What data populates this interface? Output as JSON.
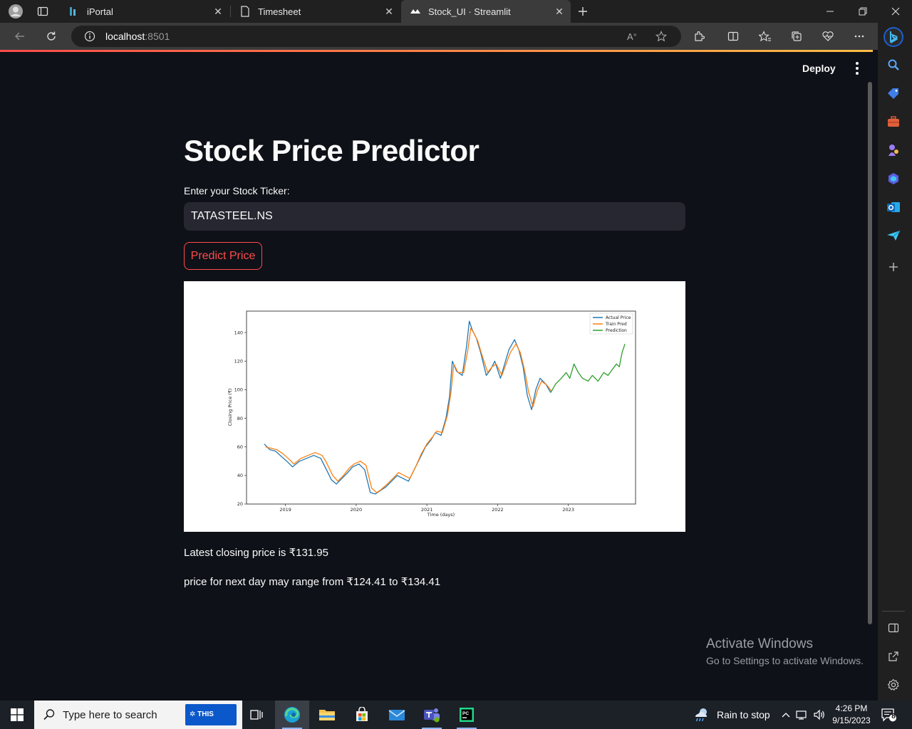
{
  "browser": {
    "tabs": [
      {
        "label": "iPortal"
      },
      {
        "label": "Timesheet"
      },
      {
        "label": "Stock_UI · Streamlit"
      }
    ],
    "url_host": "localhost",
    "url_port": ":8501"
  },
  "app": {
    "deploy_label": "Deploy",
    "title": "Stock Price Predictor",
    "ticker_label": "Enter your Stock Ticker:",
    "ticker_value": "TATASTEEL.NS",
    "predict_label": "Predict Price",
    "latest_close": "Latest closing price is ₹131.95",
    "next_range": "price for next day may range from ₹124.41 to ₹134.41"
  },
  "chart_data": {
    "type": "line",
    "title": "",
    "xlabel": "Time (days)",
    "ylabel": "Closing Price (₹)",
    "xlim": [
      2018.45,
      2023.95
    ],
    "ylim": [
      20,
      155
    ],
    "x_ticks": [
      "2019",
      "2020",
      "2021",
      "2022",
      "2023"
    ],
    "y_ticks": [
      20,
      40,
      60,
      80,
      100,
      120,
      140
    ],
    "legend_position": "top-right",
    "series": [
      {
        "name": "Actual Price",
        "color": "#1f77b4",
        "points": [
          [
            2018.7,
            62
          ],
          [
            2018.78,
            58
          ],
          [
            2018.86,
            57
          ],
          [
            2018.95,
            53
          ],
          [
            2019.04,
            49
          ],
          [
            2019.1,
            46
          ],
          [
            2019.2,
            50
          ],
          [
            2019.3,
            52
          ],
          [
            2019.4,
            54
          ],
          [
            2019.5,
            52
          ],
          [
            2019.55,
            47
          ],
          [
            2019.6,
            42
          ],
          [
            2019.65,
            37
          ],
          [
            2019.72,
            34
          ],
          [
            2019.8,
            38
          ],
          [
            2019.88,
            42
          ],
          [
            2019.95,
            46
          ],
          [
            2020.04,
            48
          ],
          [
            2020.12,
            44
          ],
          [
            2020.2,
            28
          ],
          [
            2020.27,
            27
          ],
          [
            2020.33,
            29
          ],
          [
            2020.42,
            32
          ],
          [
            2020.5,
            36
          ],
          [
            2020.58,
            40
          ],
          [
            2020.66,
            38
          ],
          [
            2020.74,
            36
          ],
          [
            2020.82,
            44
          ],
          [
            2020.9,
            52
          ],
          [
            2020.98,
            60
          ],
          [
            2021.06,
            65
          ],
          [
            2021.12,
            70
          ],
          [
            2021.2,
            68
          ],
          [
            2021.27,
            80
          ],
          [
            2021.32,
            95
          ],
          [
            2021.36,
            120
          ],
          [
            2021.42,
            113
          ],
          [
            2021.5,
            110
          ],
          [
            2021.56,
            130
          ],
          [
            2021.6,
            148
          ],
          [
            2021.64,
            142
          ],
          [
            2021.7,
            136
          ],
          [
            2021.76,
            126
          ],
          [
            2021.84,
            110
          ],
          [
            2021.9,
            114
          ],
          [
            2021.96,
            120
          ],
          [
            2022.04,
            108
          ],
          [
            2022.1,
            118
          ],
          [
            2022.16,
            128
          ],
          [
            2022.24,
            135
          ],
          [
            2022.3,
            128
          ],
          [
            2022.36,
            116
          ],
          [
            2022.42,
            96
          ],
          [
            2022.48,
            86
          ],
          [
            2022.54,
            100
          ],
          [
            2022.6,
            108
          ],
          [
            2022.68,
            104
          ],
          [
            2022.75,
            98
          ]
        ]
      },
      {
        "name": "Train Pred",
        "color": "#ff7f0e",
        "points": [
          [
            2018.72,
            60
          ],
          [
            2018.8,
            59
          ],
          [
            2018.88,
            58
          ],
          [
            2018.97,
            55
          ],
          [
            2019.06,
            51
          ],
          [
            2019.12,
            48
          ],
          [
            2019.22,
            52
          ],
          [
            2019.32,
            54
          ],
          [
            2019.42,
            56
          ],
          [
            2019.52,
            54
          ],
          [
            2019.57,
            50
          ],
          [
            2019.62,
            45
          ],
          [
            2019.67,
            40
          ],
          [
            2019.74,
            36
          ],
          [
            2019.82,
            40
          ],
          [
            2019.9,
            45
          ],
          [
            2019.97,
            48
          ],
          [
            2020.06,
            50
          ],
          [
            2020.14,
            47
          ],
          [
            2020.22,
            31
          ],
          [
            2020.29,
            28
          ],
          [
            2020.35,
            30
          ],
          [
            2020.44,
            34
          ],
          [
            2020.52,
            38
          ],
          [
            2020.6,
            42
          ],
          [
            2020.68,
            40
          ],
          [
            2020.76,
            38
          ],
          [
            2020.84,
            46
          ],
          [
            2020.92,
            55
          ],
          [
            2021.0,
            62
          ],
          [
            2021.08,
            67
          ],
          [
            2021.14,
            71
          ],
          [
            2021.22,
            70
          ],
          [
            2021.29,
            82
          ],
          [
            2021.34,
            98
          ],
          [
            2021.38,
            118
          ],
          [
            2021.44,
            112
          ],
          [
            2021.52,
            112
          ],
          [
            2021.58,
            128
          ],
          [
            2021.62,
            143
          ],
          [
            2021.66,
            140
          ],
          [
            2021.72,
            134
          ],
          [
            2021.78,
            124
          ],
          [
            2021.86,
            112
          ],
          [
            2021.92,
            116
          ],
          [
            2021.98,
            118
          ],
          [
            2022.06,
            110
          ],
          [
            2022.12,
            118
          ],
          [
            2022.18,
            126
          ],
          [
            2022.26,
            132
          ],
          [
            2022.32,
            126
          ],
          [
            2022.38,
            114
          ],
          [
            2022.44,
            98
          ],
          [
            2022.5,
            88
          ],
          [
            2022.56,
            99
          ],
          [
            2022.62,
            106
          ],
          [
            2022.7,
            103
          ],
          [
            2022.76,
            99
          ]
        ]
      },
      {
        "name": "Prediction",
        "color": "#2ca02c",
        "points": [
          [
            2022.75,
            98
          ],
          [
            2022.82,
            104
          ],
          [
            2022.9,
            108
          ],
          [
            2022.97,
            112
          ],
          [
            2023.02,
            108
          ],
          [
            2023.08,
            118
          ],
          [
            2023.14,
            112
          ],
          [
            2023.2,
            108
          ],
          [
            2023.28,
            106
          ],
          [
            2023.34,
            110
          ],
          [
            2023.42,
            106
          ],
          [
            2023.5,
            112
          ],
          [
            2023.56,
            110
          ],
          [
            2023.62,
            114
          ],
          [
            2023.68,
            118
          ],
          [
            2023.72,
            116
          ],
          [
            2023.76,
            126
          ],
          [
            2023.8,
            132
          ]
        ]
      }
    ]
  },
  "overlay": {
    "activate_title": "Activate Windows",
    "activate_sub": "Go to Settings to activate Windows."
  },
  "taskbar": {
    "search_placeholder": "Type here to search",
    "search_badge": "THIS",
    "weather": "Rain to stop",
    "time": "4:26 PM",
    "date": "9/15/2023",
    "notifications": "8"
  }
}
